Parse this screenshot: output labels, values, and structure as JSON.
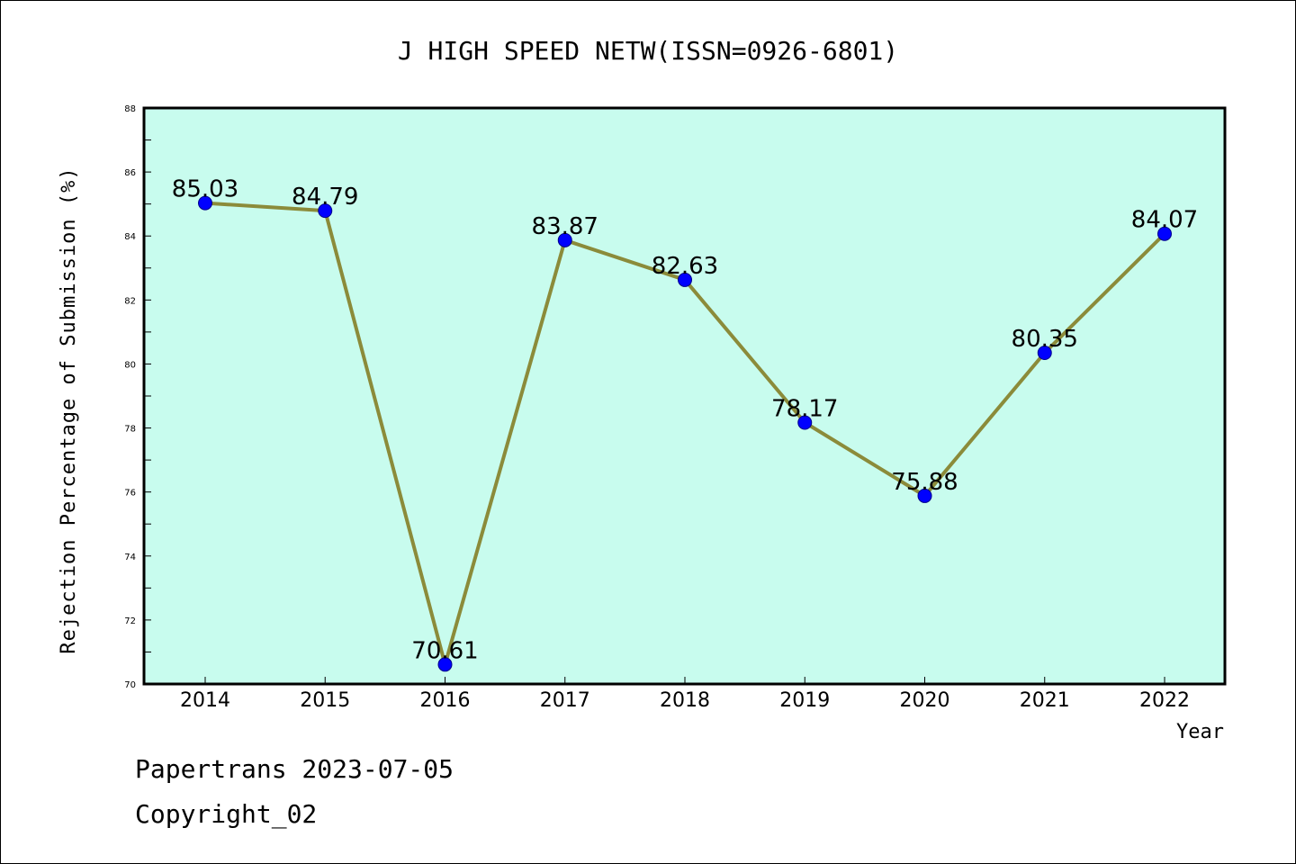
{
  "chart_data": {
    "type": "line",
    "title": "J HIGH SPEED NETW(ISSN=0926-6801)",
    "xlabel": "Year",
    "ylabel": "Rejection Percentage of Submission (%)",
    "categories": [
      "2014",
      "2015",
      "2016",
      "2017",
      "2018",
      "2019",
      "2020",
      "2021",
      "2022"
    ],
    "values": [
      85.03,
      84.79,
      70.61,
      83.87,
      82.63,
      78.17,
      75.88,
      80.35,
      84.07
    ],
    "data_labels": [
      "85.03",
      "84.79",
      "70.61",
      "83.87",
      "82.63",
      "78.17",
      "75.88",
      "80.35",
      "84.07"
    ],
    "ylim": [
      70,
      88
    ],
    "yticks": [
      "70",
      "72",
      "74",
      "76",
      "78",
      "80",
      "82",
      "84",
      "86",
      "88"
    ],
    "grid": false,
    "colors": {
      "plot_background": "#c8fcee",
      "line": "#8b8b3a",
      "marker": "#0000ff"
    }
  },
  "footer": {
    "line1": "Papertrans 2023-07-05",
    "line2": "Copyright_02"
  }
}
